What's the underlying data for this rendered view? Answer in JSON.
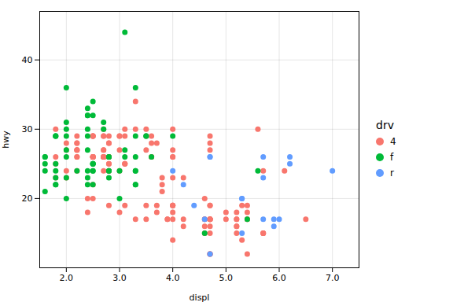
{
  "chart_data": {
    "type": "scatter",
    "xlabel": "displ",
    "ylabel": "hwy",
    "legend_title": "drv",
    "legend": "right",
    "grid": true,
    "xlim": [
      1.5,
      7.5
    ],
    "ylim": [
      10,
      47
    ],
    "xticks": [
      2,
      3,
      4,
      5,
      6,
      7
    ],
    "yticks": [
      20,
      30,
      40
    ],
    "series": [
      {
        "name": "4",
        "color": "#F8766D",
        "x": [
          1.8,
          1.8,
          2.0,
          2.0,
          2.8,
          2.8,
          3.1,
          3.1,
          2.8,
          3.1,
          4.2,
          5.3,
          5.3,
          5.7,
          6.5,
          3.3,
          3.8,
          3.8,
          3.8,
          4.0,
          3.7,
          3.7,
          3.9,
          3.9,
          4.7,
          4.7,
          4.7,
          5.2,
          5.2,
          4.7,
          4.7,
          4.7,
          4.7,
          4.7,
          5.2,
          5.2,
          5.7,
          4.7,
          4.7,
          4.7,
          4.7,
          4.7,
          5.2,
          5.2,
          5.7,
          5.4,
          5.4,
          4.0,
          4.0,
          4.0,
          4.0,
          4.6,
          5.0,
          4.2,
          4.2,
          4.6,
          4.6,
          3.7,
          4.0,
          4.7,
          4.7,
          4.7,
          5.7,
          6.1,
          4.6,
          5.4,
          5.4,
          5.4,
          4.0,
          4.0,
          4.6,
          5.0,
          2.4,
          2.4,
          2.5,
          2.5,
          3.5,
          3.5,
          3.0,
          2.5,
          2.5,
          2.8,
          2.8,
          3.6,
          3.1,
          2.8,
          3.0,
          3.6,
          4.0,
          2.7,
          2.7,
          2.7,
          2.2,
          2.2,
          2.7,
          2.7,
          2.7,
          2.2,
          2.2,
          2.2,
          2.2,
          2.2,
          2.5,
          2.5,
          2.5,
          1.8,
          2.0,
          2.0,
          2.8,
          3.5,
          3.5,
          3.0,
          3.0,
          3.5,
          3.3,
          3.3,
          4.0,
          5.6,
          3.1,
          1.8,
          2.5,
          2.5,
          2.8,
          2.8,
          3.6,
          3.1,
          2.8,
          3.0,
          3.6,
          4.0,
          2.7,
          2.7,
          2.7,
          2.2,
          2.2,
          2.7,
          2.7,
          2.7,
          2.5,
          2.5,
          2.5,
          2.5
        ],
        "values": [
          26,
          25,
          28,
          27,
          25,
          25,
          25,
          25,
          24,
          25,
          23,
          19,
          14,
          15,
          17,
          17,
          22,
          21,
          23,
          23,
          19,
          18,
          17,
          17,
          19,
          19,
          12,
          17,
          15,
          17,
          17,
          12,
          17,
          17,
          16,
          18,
          15,
          17,
          17,
          16,
          12,
          15,
          16,
          17,
          15,
          18,
          17,
          19,
          17,
          19,
          19,
          17,
          17,
          17,
          16,
          16,
          17,
          28,
          26,
          29,
          28,
          27,
          24,
          24,
          20,
          17,
          12,
          19,
          18,
          14,
          15,
          18,
          18,
          20,
          20,
          22,
          17,
          19,
          18,
          26,
          26,
          28,
          19,
          29,
          29,
          28,
          29,
          26,
          26,
          26,
          26,
          29,
          28,
          29,
          26,
          26,
          26,
          28,
          27,
          27,
          27,
          26,
          26,
          26,
          26,
          23,
          24,
          23,
          24,
          30,
          29,
          27,
          24,
          27,
          30,
          34,
          30,
          30,
          30,
          30,
          26,
          29,
          26,
          26,
          28,
          19,
          29,
          29,
          26,
          27,
          24,
          27,
          27,
          26,
          24,
          30,
          26,
          29,
          29,
          26,
          29,
          29
        ]
      },
      {
        "name": "f",
        "color": "#00BA38",
        "x": [
          1.8,
          1.8,
          2.0,
          2.0,
          2.8,
          2.8,
          3.1,
          2.4,
          2.4,
          3.1,
          3.5,
          3.6,
          2.4,
          3.0,
          3.3,
          3.3,
          3.3,
          3.3,
          4.6,
          5.4,
          1.6,
          1.6,
          1.6,
          1.6,
          1.6,
          1.8,
          1.8,
          1.8,
          2.0,
          2.4,
          2.4,
          2.4,
          2.4,
          2.5,
          2.5,
          3.3,
          2.0,
          2.0,
          2.0,
          2.0,
          2.7,
          2.7,
          3.0,
          3.5,
          3.3,
          3.3,
          4.0,
          5.6,
          3.1,
          1.8,
          2.5,
          2.5,
          2.5,
          2.5,
          2.5,
          1.8,
          2.8,
          1.8,
          2.0,
          2.8,
          2.8,
          2.2,
          2.4,
          2.4,
          2.5,
          2.5
        ],
        "values": [
          29,
          29,
          31,
          30,
          26,
          26,
          27,
          27,
          30,
          26,
          29,
          26,
          24,
          24,
          22,
          22,
          24,
          24,
          15,
          17,
          26,
          25,
          26,
          24,
          21,
          22,
          23,
          22,
          20,
          33,
          32,
          32,
          29,
          32,
          34,
          36,
          36,
          29,
          26,
          27,
          30,
          31,
          20,
          29,
          26,
          29,
          29,
          24,
          44,
          29,
          25,
          25,
          25,
          25,
          24,
          25,
          24,
          24,
          23,
          24,
          23,
          24,
          23,
          22,
          22,
          24
        ]
      },
      {
        "name": "r",
        "color": "#619CFF",
        "x": [
          5.3,
          5.3,
          5.3,
          5.7,
          6.0,
          5.7,
          5.7,
          6.2,
          6.2,
          7.0,
          5.9,
          4.7,
          5.9,
          4.6,
          4.7,
          4.7,
          4.0,
          4.2,
          4.4
        ],
        "values": [
          20,
          15,
          20,
          17,
          17,
          26,
          23,
          26,
          25,
          24,
          16,
          12,
          17,
          17,
          26,
          26,
          24,
          22,
          19
        ]
      }
    ]
  }
}
